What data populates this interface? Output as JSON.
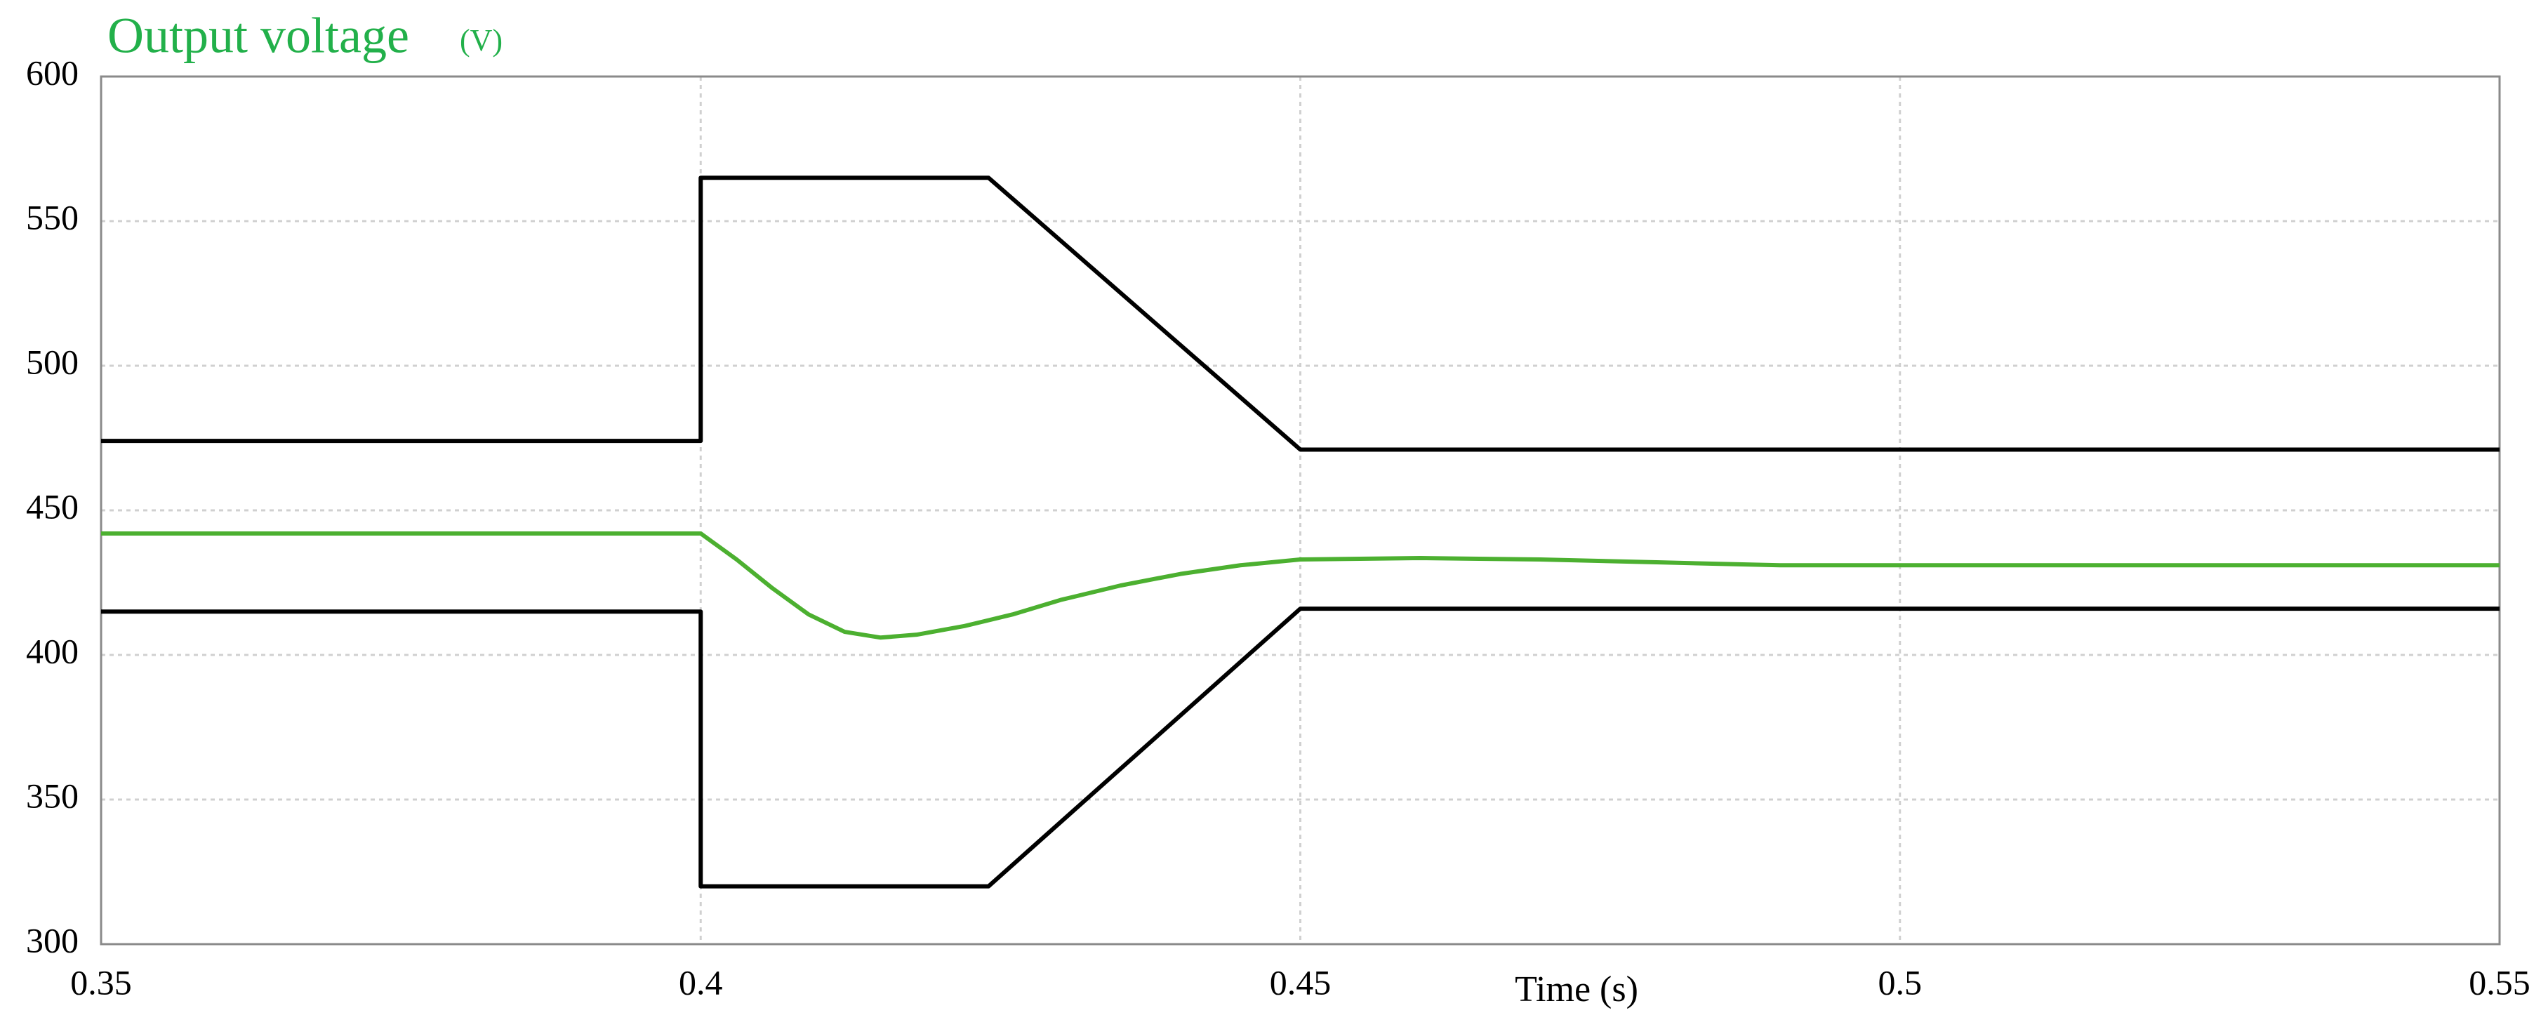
{
  "chart_data": {
    "type": "line",
    "title": "Output voltage",
    "y_label": "(V)",
    "x_label": "Time (s)",
    "xlim": [
      0.35,
      0.55
    ],
    "xticks": [
      0.35,
      0.4,
      0.45,
      0.5,
      0.55
    ],
    "ylim": [
      300,
      600
    ],
    "yticks": [
      300,
      350,
      400,
      450,
      500,
      550,
      600
    ],
    "grid": true,
    "series": [
      {
        "color": "#000000",
        "x": [
          0.35,
          0.4,
          0.4,
          0.424,
          0.45,
          0.55
        ],
        "values": [
          474,
          474,
          565,
          565,
          471,
          471
        ]
      },
      {
        "color": "#000000",
        "x": [
          0.35,
          0.4,
          0.4,
          0.424,
          0.45,
          0.55
        ],
        "values": [
          415,
          415,
          320,
          320,
          416,
          416
        ]
      },
      {
        "color": "#4cb030",
        "x": [
          0.35,
          0.4,
          0.403,
          0.406,
          0.409,
          0.412,
          0.415,
          0.418,
          0.422,
          0.426,
          0.43,
          0.435,
          0.44,
          0.445,
          0.45,
          0.46,
          0.47,
          0.48,
          0.49,
          0.5,
          0.55
        ],
        "values": [
          442,
          442,
          433,
          423,
          414,
          408,
          406,
          407,
          410,
          414,
          419,
          424,
          428,
          431,
          433,
          433.5,
          433,
          432,
          431,
          431,
          431
        ]
      }
    ]
  }
}
